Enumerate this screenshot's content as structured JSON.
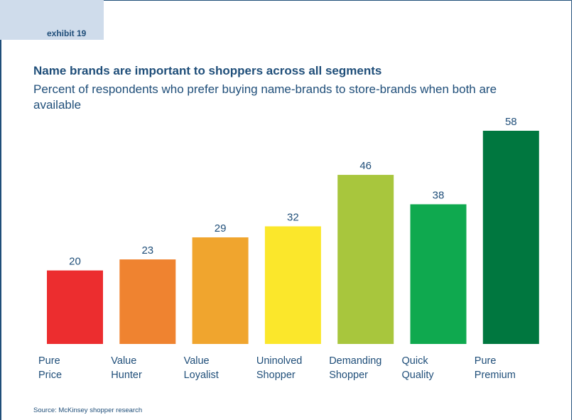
{
  "exhibit_label": "exhibit 19",
  "chart_data": {
    "type": "bar",
    "title": "Name brands are important to shoppers across all segments",
    "subtitle": "Percent of respondents who prefer buying name-brands to store-brands when both are available",
    "categories": [
      [
        "Pure",
        "Price"
      ],
      [
        "Value",
        "Hunter"
      ],
      [
        "Value",
        "Loyalist"
      ],
      [
        "Uninolved",
        "Shopper"
      ],
      [
        "Demanding",
        "Shopper"
      ],
      [
        "Quick",
        "Quality"
      ],
      [
        "Pure",
        "Premium"
      ]
    ],
    "values": [
      20,
      23,
      29,
      32,
      46,
      38,
      58
    ],
    "colors": [
      "#ec2d2f",
      "#ef8330",
      "#f0a52e",
      "#fbe72b",
      "#a8c63d",
      "#0fa94f",
      "#00773f"
    ],
    "ylim": [
      0,
      58
    ],
    "grid": false,
    "legend": "none"
  },
  "source": "Source: McKinsey shopper research"
}
